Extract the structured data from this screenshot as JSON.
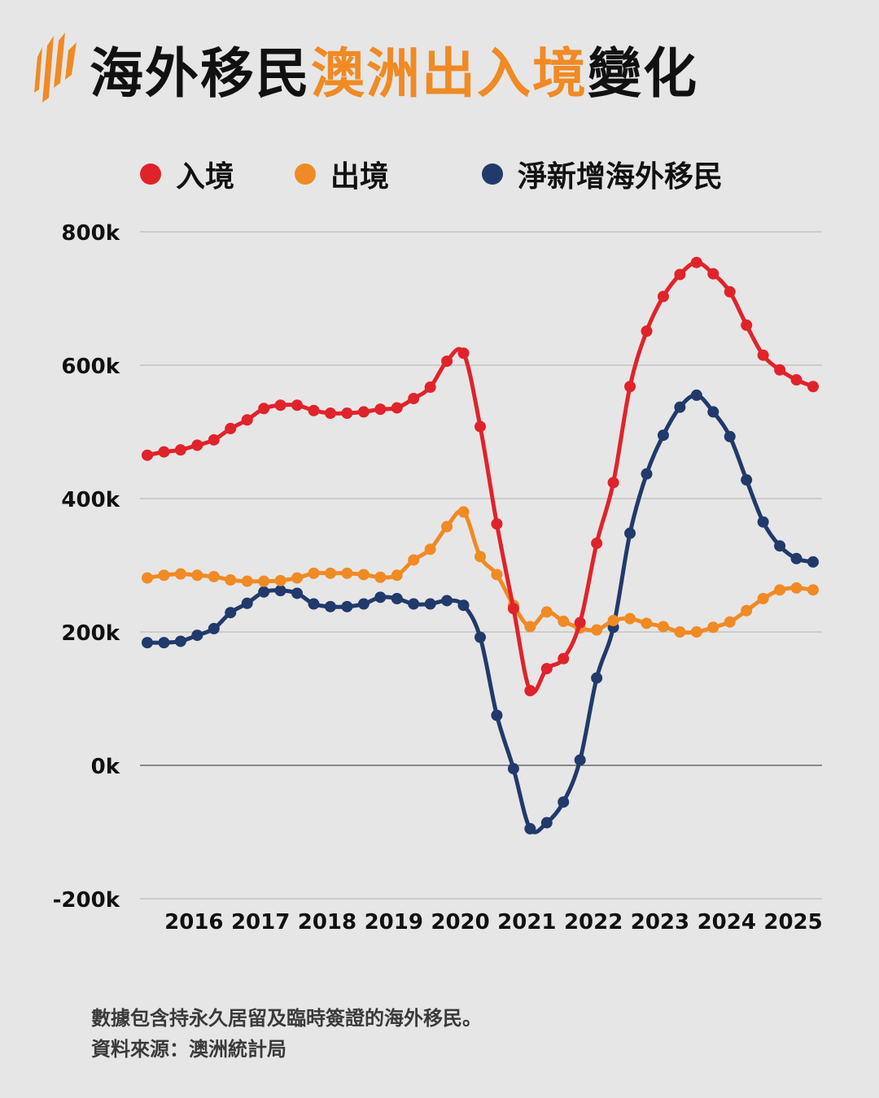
{
  "title": {
    "part1": "海外移民",
    "part2": "澳洲出入境",
    "part3": "變化"
  },
  "colors": {
    "arrivals": "#e0232a",
    "departures": "#f08a24",
    "net": "#213a6b",
    "accent": "#f08a24",
    "background": "#e6e6e6"
  },
  "legend": [
    {
      "label": "入境",
      "color": "#e0232a"
    },
    {
      "label": "出境",
      "color": "#f08a24"
    },
    {
      "label": "淨新增海外移民",
      "color": "#213a6b"
    }
  ],
  "footnote": {
    "line1": "數據包含持永久居留及臨時簽證的海外移民。",
    "line2": "資料來源：澳洲統計局"
  },
  "chart_data": {
    "type": "line",
    "title": "海外移民澳洲出入境變化",
    "xlabel": "",
    "ylabel": "",
    "ylim": [
      -200000,
      800000
    ],
    "yticks": [
      -200000,
      0,
      200000,
      400000,
      600000,
      800000
    ],
    "ytick_labels": [
      "-200k",
      "0k",
      "200k",
      "400k",
      "600k",
      "800k"
    ],
    "xtick_labels": [
      "2016",
      "2017",
      "2018",
      "2019",
      "2020",
      "2021",
      "2022",
      "2023",
      "2024",
      "2025"
    ],
    "xtick_index": [
      3,
      7,
      11,
      15,
      19,
      23,
      27,
      31,
      35,
      39
    ],
    "grid": true,
    "legend_position": "top",
    "series": [
      {
        "name": "入境",
        "color": "#e0232a",
        "values": [
          465000,
          470000,
          473000,
          480000,
          488000,
          505000,
          518000,
          535000,
          540000,
          540000,
          532000,
          528000,
          528000,
          530000,
          534000,
          536000,
          550000,
          567000,
          606000,
          618000,
          508000,
          362000,
          235000,
          112000,
          145000,
          160000,
          214000,
          333000,
          424000,
          568000,
          651000,
          703000,
          736000,
          754000,
          737000,
          710000,
          660000,
          615000,
          593000,
          578000,
          568000
        ]
      },
      {
        "name": "出境",
        "color": "#f08a24",
        "values": [
          281000,
          285000,
          287000,
          285000,
          283000,
          278000,
          276000,
          276000,
          277000,
          281000,
          288000,
          288000,
          288000,
          286000,
          282000,
          285000,
          308000,
          324000,
          358000,
          380000,
          313000,
          286000,
          240000,
          208000,
          230000,
          216000,
          206000,
          203000,
          217000,
          220000,
          213000,
          208000,
          200000,
          200000,
          207000,
          215000,
          232000,
          250000,
          263000,
          266000,
          263000
        ]
      },
      {
        "name": "淨新增海外移民",
        "color": "#213a6b",
        "values": [
          184000,
          184000,
          186000,
          195000,
          205000,
          229000,
          243000,
          260000,
          262000,
          258000,
          242000,
          238000,
          238000,
          242000,
          252000,
          250000,
          242000,
          242000,
          247000,
          240000,
          192000,
          75000,
          -5000,
          -95000,
          -86000,
          -55000,
          8000,
          131000,
          207000,
          348000,
          437000,
          495000,
          537000,
          555000,
          530000,
          493000,
          428000,
          365000,
          329000,
          310000,
          305000
        ]
      }
    ]
  }
}
